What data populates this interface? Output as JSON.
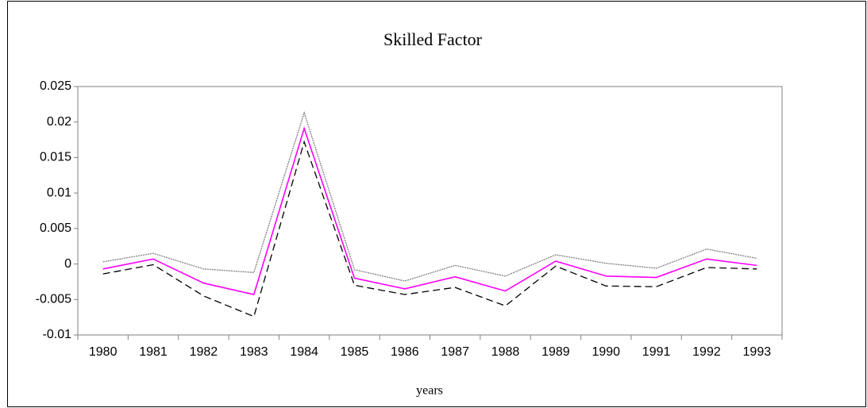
{
  "chart_data": {
    "type": "line",
    "title": "Skilled Factor",
    "x_label": "years",
    "categories": [
      "1980",
      "1981",
      "1982",
      "1983",
      "1984",
      "1985",
      "1986",
      "1987",
      "1988",
      "1989",
      "1990",
      "1991",
      "1992",
      "1993"
    ],
    "series": [
      {
        "color": "#808080",
        "style": "dotted",
        "values": [
          0.0003,
          0.0015,
          -0.0007,
          -0.0012,
          0.0213,
          -0.0008,
          -0.0024,
          -0.0002,
          -0.0017,
          0.0013,
          0.0001,
          -0.0006,
          0.0021,
          0.0008
        ]
      },
      {
        "color": "#ff00ff",
        "style": "solid",
        "values": [
          -0.0007,
          0.0007,
          -0.0027,
          -0.0043,
          0.0191,
          -0.002,
          -0.0035,
          -0.0018,
          -0.0038,
          0.0004,
          -0.0017,
          -0.0019,
          0.0007,
          -0.0002
        ]
      },
      {
        "color": "#000000",
        "style": "dashed",
        "values": [
          -0.0014,
          -0.0001,
          -0.0045,
          -0.0074,
          0.0172,
          -0.003,
          -0.0043,
          -0.0033,
          -0.0059,
          -0.0003,
          -0.0031,
          -0.0032,
          -0.0005,
          -0.0007
        ]
      }
    ],
    "ylim": [
      -0.01,
      0.025
    ],
    "yticks": [
      -0.01,
      -0.005,
      0,
      0.005,
      0.01,
      0.015,
      0.02,
      0.025
    ],
    "grid": false,
    "legend": false
  }
}
